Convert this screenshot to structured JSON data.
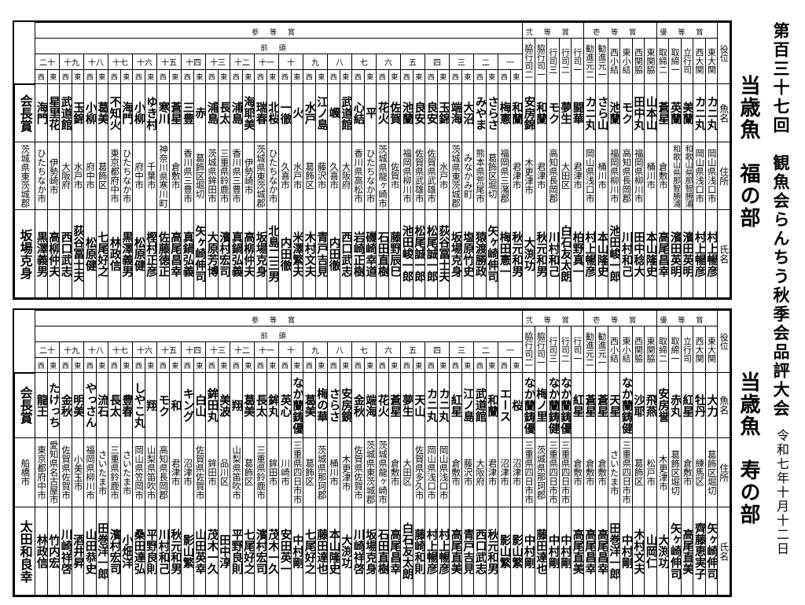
{
  "title": "第百三十七回　観魚会らんちう秋季会品評大会",
  "date": "令和七年十月十二日",
  "labels": {
    "role": "役位",
    "fish": "魚名",
    "address": "住所",
    "owner": "氏名",
    "maegashira": "前頭",
    "east": "東",
    "west": "西"
  },
  "prize_groups": [
    "優等賞",
    "壱等賞",
    "弐等賞",
    "参等賞"
  ],
  "ranks": [
    "一",
    "二",
    "三",
    "四",
    "五",
    "六",
    "七",
    "八",
    "九",
    "十",
    "十一",
    "十二",
    "十三",
    "十四",
    "十五",
    "十六",
    "十七",
    "十八",
    "十九",
    "二十"
  ],
  "divisions": [
    {
      "heading": "当歳魚　福の部",
      "chairman": {
        "label": "会長賞",
        "address": "茨城県東茨城郡",
        "owner": "坂場克身"
      },
      "sanyaku": [
        {
          "rank": "東大関",
          "fish": "カニ丸",
          "address": "岡山県浅口市",
          "owner": "村上暢彦"
        },
        {
          "rank": "西大関",
          "fish": "カニ丸",
          "address": "岡山県浅口市",
          "owner": "村上暢彦"
        },
        {
          "rank": "立行司",
          "fish": "美蘭",
          "address": "和歌山県那智勝浦",
          "owner": "濱田英明"
        },
        {
          "rank": "取締一",
          "fish": "英蘭",
          "address": "和歌山県那智勝浦",
          "owner": "濱田英明"
        },
        {
          "rank": "取締二",
          "fish": "蒼星",
          "address": "倉敷市",
          "owner": "高尾昌幸"
        },
        {
          "rank": "東関脇",
          "fish": "山本山",
          "address": "桶川市",
          "owner": "本山隆史"
        },
        {
          "rank": "西関脇",
          "fish": "田中丸",
          "address": "福岡県柳川市",
          "owner": "田中稔大"
        },
        {
          "rank": "東小結",
          "fish": "モク",
          "address": "高知県長岡郡",
          "owner": "川村和己"
        },
        {
          "rank": "西小結",
          "fish": "池蘭",
          "address": "福岡県柳川市",
          "owner": "池田峻一郎"
        },
        {
          "rank": "勧進元一",
          "fish": "さら山",
          "address": "桶川市",
          "owner": "本山隆史"
        },
        {
          "rank": "勧進元二",
          "fish": "カニ丸",
          "address": "岡山県浅口市",
          "owner": "村上暢彦"
        },
        {
          "rank": "行司一",
          "fish": "闘華",
          "address": "君津市",
          "owner": "柏野真一"
        },
        {
          "rank": "行司二",
          "fish": "夢生",
          "address": "大田区",
          "owner": "白石友太朗"
        },
        {
          "rank": "行司三",
          "fish": "モク",
          "address": "高知県長岡郡",
          "owner": "川村和己"
        },
        {
          "rank": "脇行司一",
          "fish": "和蘭",
          "address": "君津市",
          "owner": "秋元和男"
        },
        {
          "rank": "脇行司二",
          "fish": "安房錦",
          "address": "木更津市",
          "owner": "大渕功"
        }
      ],
      "maegashira": [
        {
          "east": {
            "fish": "和蘭",
            "address": "君津市",
            "owner": "秋元和男"
          },
          "west": {
            "fish": "梅憲",
            "address": "福岡県三潴郡",
            "owner": "梅田憲一"
          }
        },
        {
          "east": {
            "fish": "さらさ",
            "address": "葛飾区堀切",
            "owner": "矢ヶ崎伸司"
          },
          "west": {
            "fish": "みやま",
            "address": "熊本県荒尾市",
            "owner": "猿渡勝政"
          }
        },
        {
          "east": {
            "fish": "大沼",
            "address": "みなかみ町",
            "owner": "塩原竹史"
          },
          "west": {
            "fish": "端海",
            "address": "茨城県東茨城郡",
            "owner": "坂場克身"
          }
        },
        {
          "east": {
            "fish": "玉錦",
            "address": "水戸市",
            "owner": "荻谷冨士夫"
          },
          "west": {
            "fish": "良安",
            "address": "佐賀県武雄市",
            "owner": "松尾誠一郎"
          }
        },
        {
          "east": {
            "fish": "良安",
            "address": "佐賀県武雄市",
            "owner": "松尾誠一郎"
          },
          "west": {
            "fish": "池蘭",
            "address": "福岡県柳川市",
            "owner": "池田峻一郎"
          }
        },
        {
          "east": {
            "fish": "佐賀",
            "address": "佐賀市",
            "owner": "藤野辰巳"
          },
          "west": {
            "fish": "花火",
            "address": "茨城県龍ヶ崎市",
            "owner": "石田直樹"
          }
        },
        {
          "east": {
            "fish": "平",
            "address": "ひたちなか市",
            "owner": "磯崎幸道"
          },
          "west": {
            "fish": "心結",
            "address": "香川県高松市",
            "owner": "岩崎正樹"
          }
        },
        {
          "east": {
            "fish": "武道館",
            "address": "大阪府",
            "owner": "西口武志"
          },
          "west": {
            "fish": "颯",
            "address": "久喜市",
            "owner": "内田徹"
          }
        },
        {
          "east": {
            "fish": "江ノ島",
            "address": "藤沢市",
            "owner": "青戸吉見"
          },
          "west": {
            "fish": "水戸",
            "address": "葛飾区",
            "owner": "木村文夫"
          }
        },
        {
          "east": {
            "fish": "火",
            "address": "水戸市",
            "owner": "米澤繁夫"
          },
          "west": {
            "fish": "一徹",
            "address": "久喜市",
            "owner": "内田徹"
          }
        },
        {
          "east": {
            "fish": "北桜",
            "address": "ひたちなか市",
            "owner": "北島二三男"
          },
          "west": {
            "fish": "瑞春",
            "address": "茨城県東茨城郡",
            "owner": "坂場克身"
          }
        },
        {
          "east": {
            "fish": "海耶美",
            "address": "伊勢崎市",
            "owner": "高柳仲夫"
          },
          "west": {
            "fish": "浦島",
            "address": "香川県三豊市",
            "owner": "真鍋弘義"
          }
        },
        {
          "east": {
            "fish": "長太",
            "address": "三重県鈴鹿市",
            "owner": "濱村宏司"
          },
          "west": {
            "fish": "浦島",
            "address": "茨城県鉾田市",
            "owner": "大原芳博"
          }
        },
        {
          "east": {
            "fish": "赤",
            "address": "葛飾区堀切",
            "owner": "矢ヶ崎伸司"
          },
          "west": {
            "fish": "三豊",
            "address": "香川県三豊市",
            "owner": "真鍋弘義"
          }
        },
        {
          "east": {
            "fish": "蒼星",
            "address": "倉敷市",
            "owner": "高尾昌幸"
          },
          "west": {
            "fish": "寒川",
            "address": "神奈川県寒川町",
            "owner": "佐藤徳正"
          }
        },
        {
          "east": {
            "fish": "ゆき村",
            "address": "千葉市",
            "owner": "樫村正彦"
          },
          "west": {
            "fish": "小柳",
            "address": "府中市",
            "owner": "松原健"
          }
        },
        {
          "east": {
            "fish": "海門",
            "address": "ひたちなか市",
            "owner": "黒澤義男"
          },
          "west": {
            "fish": "不知火",
            "address": "東京都府中市",
            "owner": "林政信"
          }
        },
        {
          "east": {
            "fish": "葛美",
            "address": "葛飾区",
            "owner": "七尾好之"
          },
          "west": {
            "fish": "小柳",
            "address": "府中市",
            "owner": "松原健"
          }
        },
        {
          "east": {
            "fish": "玉錦",
            "address": "水戸市",
            "owner": "荻谷冨士夫"
          },
          "west": {
            "fish": "武道館",
            "address": "大阪府",
            "owner": "西口武志"
          }
        },
        {
          "east": {
            "fish": "星里花",
            "address": "伊勢崎市",
            "owner": "高柳仲夫"
          },
          "west": {
            "fish": "海門",
            "address": "ひたちなか市",
            "owner": "黒澤義男"
          }
        }
      ]
    },
    {
      "heading": "当歳魚　寿の部",
      "chairman": {
        "label": "会長賞",
        "address": "船橋市",
        "owner": "太田和良幸"
      },
      "sanyaku": [
        {
          "rank": "東大関",
          "fish": "大力",
          "address": "葛飾区堀切",
          "owner": "矢ヶ崎伸司"
        },
        {
          "rank": "西大関",
          "fish": "牡丹",
          "address": "練馬区",
          "owner": "齊藤恵実子"
        },
        {
          "rank": "立行司",
          "fish": "紅星",
          "address": "倉敷市",
          "owner": "高尾直美"
        },
        {
          "rank": "取締一",
          "fish": "赤丸",
          "address": "葛飾区堀切",
          "owner": "矢ヶ崎伸司"
        },
        {
          "rank": "取締二",
          "fish": "安房誉",
          "address": "木更津市",
          "owner": "大渕功"
        },
        {
          "rank": "東関脇",
          "fish": "飛燕",
          "address": "松戸市",
          "owner": "山岡仁"
        },
        {
          "rank": "西関脇",
          "fish": "沙耶",
          "address": "葛飾区",
          "owner": "木村文夫"
        },
        {
          "rank": "東小結",
          "fish": "なか蘭鋳健",
          "address": "三重県四日市市",
          "owner": "中村剛"
        },
        {
          "rank": "西小結",
          "fish": "天星",
          "address": "さいたま市",
          "owner": "田巻洋一郎"
        },
        {
          "rank": "勧進元一",
          "fish": "蒼星",
          "address": "倉敷市",
          "owner": "高尾昌幸"
        },
        {
          "rank": "勧進元二",
          "fish": "蒼星",
          "address": "倉敷市",
          "owner": "高尾昌幸"
        },
        {
          "rank": "行司一",
          "fish": "紅星",
          "address": "倉敷市",
          "owner": "高尾直美"
        },
        {
          "rank": "行司二",
          "fish": "なか蘭鋳優",
          "address": "三重県四日市市",
          "owner": "中村剛"
        },
        {
          "rank": "行司三",
          "fish": "なか蘭鋳健",
          "address": "三重県四日市市",
          "owner": "中村剛"
        },
        {
          "rank": "脇行司一",
          "fish": "梅ノ里",
          "address": "茨城県那珂郡",
          "owner": "藤田達也"
        },
        {
          "rank": "脇行司二",
          "fish": "なか蘭鋳優",
          "address": "三重県四日市市",
          "owner": "中村剛"
        }
      ],
      "maegashira": [
        {
          "east": {
            "fish": "桜",
            "address": "沼津市",
            "owner": "影山繁"
          },
          "west": {
            "fish": "エース",
            "address": "沼津市",
            "owner": "影山繁"
          }
        },
        {
          "east": {
            "fish": "和蘭",
            "address": "君津市",
            "owner": "秋元和男"
          },
          "west": {
            "fish": "武道館",
            "address": "大阪府",
            "owner": "西口武志"
          }
        },
        {
          "east": {
            "fish": "江ノ島",
            "address": "藤沢市",
            "owner": "青戸吉見"
          },
          "west": {
            "fish": "紅星",
            "address": "倉敷市",
            "owner": "高尾直美"
          }
        },
        {
          "east": {
            "fish": "カニ丸",
            "address": "岡山県浅口市",
            "owner": "村上暢彦"
          },
          "west": {
            "fish": "カニ丸",
            "address": "岡山県浅口市",
            "owner": "村上暢彦"
          }
        },
        {
          "east": {
            "fish": "天山",
            "address": "佐賀県多久市",
            "owner": "藤崎和則"
          },
          "west": {
            "fish": "夢生",
            "address": "大田区",
            "owner": "白石友太朗"
          }
        },
        {
          "east": {
            "fish": "蒼星",
            "address": "倉敷市",
            "owner": "高尾昌幸"
          },
          "west": {
            "fish": "花火",
            "address": "茨城県龍ヶ崎市",
            "owner": "石田直樹"
          }
        },
        {
          "east": {
            "fish": "端海",
            "address": "茨城県東茨城郡",
            "owner": "坂場克身"
          },
          "west": {
            "fish": "金秋",
            "address": "佐賀県佐賀市",
            "owner": "川崎祥啓"
          }
        },
        {
          "east": {
            "fish": "安房鏡",
            "address": "木更津市",
            "owner": "大渕功"
          },
          "west": {
            "fish": "さらさ",
            "address": "桶川市",
            "owner": "本山隆史"
          }
        },
        {
          "east": {
            "fish": "梅の華",
            "address": "茨城県那珂郡",
            "owner": "藤田達也"
          },
          "west": {
            "fish": "葛美",
            "address": "葛飾区",
            "owner": "七尾好之"
          }
        },
        {
          "east": {
            "fish": "なか蘭鋳優",
            "address": "三重県四日市市",
            "owner": "中村剛"
          },
          "west": {
            "fish": "英心",
            "address": "川崎市",
            "owner": "安田英一"
          }
        },
        {
          "east": {
            "fish": "鉾丸",
            "address": "鉾田市",
            "owner": "茂木一久"
          },
          "west": {
            "fish": "長太",
            "address": "三重県鈴鹿市",
            "owner": "濱村宏司"
          }
        },
        {
          "east": {
            "fish": "葛美",
            "address": "葛飾区",
            "owner": "七尾好之"
          },
          "west": {
            "fish": "翔",
            "address": "山梨県笛吹市",
            "owner": "平野良則"
          }
        },
        {
          "east": {
            "fish": "美波",
            "address": "品川区",
            "owner": "田中淳"
          },
          "west": {
            "fish": "鉾田丸",
            "address": "鉾田市",
            "owner": "茂木一久"
          }
        },
        {
          "east": {
            "fish": "白山",
            "address": "佐賀県佐賀市",
            "owner": "山田英幸"
          },
          "west": {
            "fish": "キング",
            "address": "沼津市",
            "owner": "影山繁"
          }
        },
        {
          "east": {
            "fish": "和",
            "address": "君津市",
            "owner": "秋元和男"
          },
          "west": {
            "fish": "モク",
            "address": "高知県長岡郡",
            "owner": "川村和己"
          }
        },
        {
          "east": {
            "fish": "翔",
            "address": "山梨県笛吹市",
            "owner": "平野良則"
          },
          "west": {
            "fish": "しやこ丸",
            "address": "岡山県笠岡市",
            "owner": "桑田達弘"
          }
        },
        {
          "east": {
            "fish": "豊春",
            "address": "さいたま市",
            "owner": "小畑洋"
          },
          "west": {
            "fish": "長太",
            "address": "三重県鈴鹿市",
            "owner": "濱村宏司"
          }
        },
        {
          "east": {
            "fish": "流石",
            "address": "さいたま市",
            "owner": "田巻洋一郎"
          },
          "west": {
            "fish": "やっさん",
            "address": "福岡県柳川市",
            "owner": "山田恭史"
          }
        },
        {
          "east": {
            "fish": "明美",
            "address": "小美玉市",
            "owner": "酒井昇"
          },
          "west": {
            "fish": "金秋",
            "address": "佐賀県佐賀市",
            "owner": "川崎祥啓"
          }
        },
        {
          "east": {
            "fish": "たけっち",
            "address": "愛知県名古屋市",
            "owner": "竹内宏"
          },
          "west": {
            "fish": "龍王",
            "address": "東京都府中市",
            "owner": "林政信"
          }
        }
      ]
    }
  ]
}
